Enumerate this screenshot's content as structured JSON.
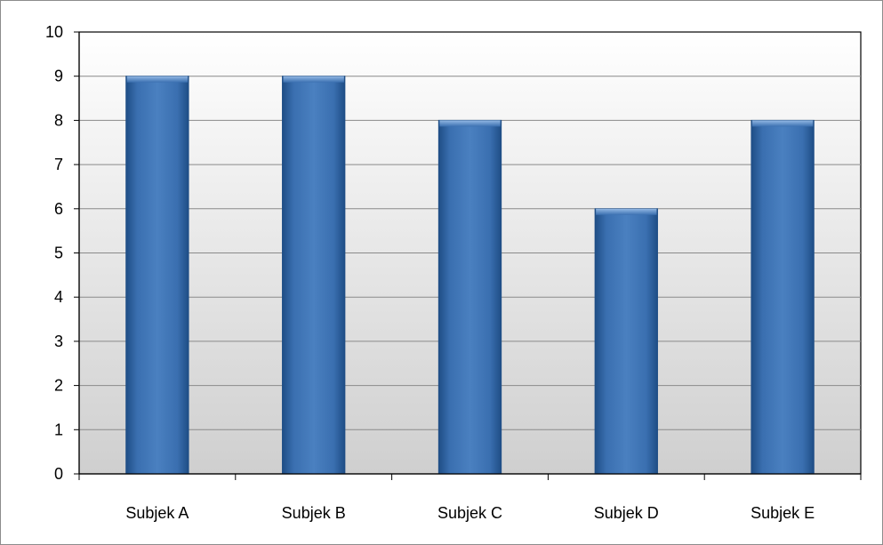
{
  "chart_data": {
    "type": "bar",
    "categories": [
      "Subjek A",
      "Subjek B",
      "Subjek C",
      "Subjek D",
      "Subjek E"
    ],
    "series": [
      {
        "values": [
          9,
          9,
          8,
          6,
          8
        ]
      }
    ],
    "y_ticks": [
      "0",
      "1",
      "2",
      "3",
      "4",
      "5",
      "6",
      "7",
      "8",
      "9",
      "10"
    ],
    "ylim": [
      0,
      10
    ],
    "grid": true,
    "legend": "none",
    "colors": {
      "bar": "#3a6fb0",
      "bar_dark": "#1f4e86",
      "plot_bg_top": "#ffffff",
      "plot_bg_bottom": "#cfcfcf",
      "grid": "#8a8a8a",
      "axis": "#000000"
    }
  }
}
